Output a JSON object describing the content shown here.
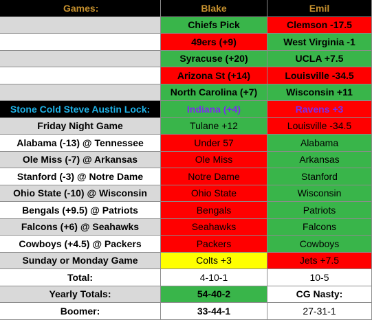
{
  "header": {
    "games": "Games:",
    "blake": "Blake",
    "emil": "Emil"
  },
  "picks": [
    {
      "blake": "Chiefs Pick",
      "emil": "Clemson -17.5"
    },
    {
      "blake": "49ers (+9)",
      "emil": "West Virginia -1"
    },
    {
      "blake": "Syracuse (+20)",
      "emil": "UCLA +7.5"
    },
    {
      "blake": "Arizona St (+14)",
      "emil": "Louisville -34.5"
    },
    {
      "blake": "North Carolina (+7)",
      "emil": "Wisconsin +11"
    }
  ],
  "lock": {
    "label": "Stone Cold Steve Austin Lock:",
    "blake": "Indiana (+4)",
    "emil": "Ravens +3"
  },
  "games": [
    {
      "game": "Friday Night Game",
      "blake": "Tulane +12",
      "emil": "Louisville -34.5"
    },
    {
      "game": "Alabama (-13) @ Tennessee",
      "blake": "Under 57",
      "emil": "Alabama"
    },
    {
      "game": "Ole Miss (-7) @ Arkansas",
      "blake": "Ole Miss",
      "emil": "Arkansas"
    },
    {
      "game": "Stanford (-3) @ Notre Dame",
      "blake": "Notre Dame",
      "emil": "Stanford"
    },
    {
      "game": "Ohio State (-10) @ Wisconsin",
      "blake": "Ohio State",
      "emil": "Wisconsin"
    },
    {
      "game": "Bengals (+9.5) @ Patriots",
      "blake": "Bengals",
      "emil": "Patriots"
    },
    {
      "game": "Falcons (+6) @ Seahawks",
      "blake": "Seahawks",
      "emil": "Falcons"
    },
    {
      "game": "Cowboys (+4.5) @ Packers",
      "blake": "Packers",
      "emil": "Cowboys"
    },
    {
      "game": "Sunday or Monday Game",
      "blake": "Colts +3",
      "emil": "Jets +7.5"
    }
  ],
  "totals": {
    "total_label": "Total:",
    "total_blake": "4-10-1",
    "total_emil": "10-5",
    "yearly_label": "Yearly Totals:",
    "yearly_blake": "54-40-2",
    "yearly_emil": "CG Nasty:",
    "boomer_label": "Boomer:",
    "boomer_blake": "33-44-1",
    "boomer_emil": "27-31-1"
  },
  "colors": {
    "green": "#39b54a",
    "red": "#ff0000",
    "yellow": "#ffff00",
    "gold": "#c5902e",
    "cyan": "#1fb3e8",
    "purple": "#7a2cf0"
  }
}
